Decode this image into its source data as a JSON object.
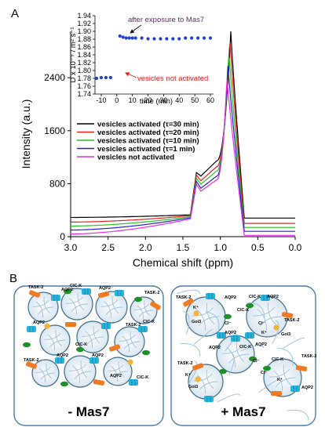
{
  "panel_labels": {
    "a": "A",
    "b": "B"
  },
  "chart_data": [
    {
      "type": "line",
      "xlabel": "Chemical shift (ppm)",
      "ylabel": "Intensity (a.u.)",
      "x_ticks": [
        "3.0",
        "2.5",
        "2.0",
        "1.5",
        "1.0",
        "0.5",
        "0.0"
      ],
      "y_ticks": [
        "0",
        "800",
        "1600",
        "2400"
      ],
      "xlim": [
        3.0,
        0.0
      ],
      "ylim": [
        0,
        3100
      ],
      "legend_position": "center-left",
      "series": [
        {
          "name": "vesicles activated (τ=30 min)",
          "color": "#000000",
          "baseline": 290,
          "shoulder": 1030,
          "peak": 3100,
          "dip": 1040,
          "tail": 280
        },
        {
          "name": "vesicles activated (τ=20 min)",
          "color": "#e8221b",
          "baseline": 220,
          "shoulder": 990,
          "peak": 3000,
          "dip": 960,
          "tail": 200
        },
        {
          "name": "vesicles activated (τ=10 min)",
          "color": "#22c322",
          "baseline": 160,
          "shoulder": 940,
          "peak": 2800,
          "dip": 900,
          "tail": 140
        },
        {
          "name": "vesicles activated (τ=1 min)",
          "color": "#2323c8",
          "baseline": 100,
          "shoulder": 890,
          "peak": 2600,
          "dip": 830,
          "tail": 80
        },
        {
          "name": "vesicles not activated",
          "color": "#e52ee5",
          "baseline": 40,
          "shoulder": 840,
          "peak": 2400,
          "dip": 780,
          "tail": 20
        }
      ]
    },
    {
      "type": "scatter",
      "xlabel": "time (min)",
      "ylabel": "D x 10⁻⁹ / m² s⁻¹",
      "x_ticks": [
        "-10",
        "0",
        "10",
        "20",
        "30",
        "40",
        "50",
        "60"
      ],
      "y_ticks": [
        "1.74",
        "1.76",
        "1.78",
        "1.80",
        "1.82",
        "1.84",
        "1.86",
        "1.88",
        "1.90",
        "1.92",
        "1.94"
      ],
      "xlim": [
        -14,
        62
      ],
      "ylim": [
        1.74,
        1.94
      ],
      "marker_color": "#1f3fd1",
      "points": [
        {
          "x": -13,
          "y": 1.78
        },
        {
          "x": -10,
          "y": 1.782
        },
        {
          "x": -7,
          "y": 1.782
        },
        {
          "x": -4,
          "y": 1.782
        },
        {
          "x": 2,
          "y": 1.888
        },
        {
          "x": 4,
          "y": 1.885
        },
        {
          "x": 6,
          "y": 1.883
        },
        {
          "x": 8,
          "y": 1.883
        },
        {
          "x": 10,
          "y": 1.883
        },
        {
          "x": 12,
          "y": 1.883
        },
        {
          "x": 16,
          "y": 1.883
        },
        {
          "x": 20,
          "y": 1.881
        },
        {
          "x": 24,
          "y": 1.881
        },
        {
          "x": 28,
          "y": 1.881
        },
        {
          "x": 32,
          "y": 1.881
        },
        {
          "x": 36,
          "y": 1.881
        },
        {
          "x": 40,
          "y": 1.881
        },
        {
          "x": 44,
          "y": 1.883
        },
        {
          "x": 48,
          "y": 1.883
        },
        {
          "x": 52,
          "y": 1.883
        },
        {
          "x": 56,
          "y": 1.883
        },
        {
          "x": 60,
          "y": 1.883
        }
      ],
      "annotations": [
        "after exposure to Mas7",
        "vesicles not activated"
      ]
    }
  ],
  "panel_b": {
    "left_label": "- Mas7",
    "right_label": "+ Mas7",
    "right_labels": [
      "TASK-2",
      "Goi3",
      "K⁺",
      "AQP2",
      "ClC-K",
      "Cl⁻",
      "ClC-K",
      "Cl⁻",
      "K⁺",
      "Goi3",
      "TASK-2",
      "AQP2",
      "AQP2",
      "ClC-K",
      "Cl⁻",
      "AQP2",
      "TASK-2",
      "K⁺",
      "Goi3",
      "Cl⁻",
      "ClC-K",
      "TASK-2",
      "K⁺",
      "AQP2",
      "AQP2"
    ],
    "left_labels": [
      "AQP2",
      "TASK-2",
      "ClC-K",
      "AQP2",
      "TASK-2",
      "ClC-K",
      "AQP2",
      "TASK-2",
      "AQP2",
      "ClC-K",
      "AQP2",
      "TASK-2",
      "ClC-K",
      "AQP2"
    ],
    "colors": {
      "aqp2": "#27b4dc",
      "task2": "#f07a22",
      "clck": "#1e8f2a",
      "goi3": "#f2b43a",
      "vesicle_fill": "#dfeaf4",
      "membrane": "#3e6a88",
      "panel_border": "#4e7ca8"
    }
  }
}
